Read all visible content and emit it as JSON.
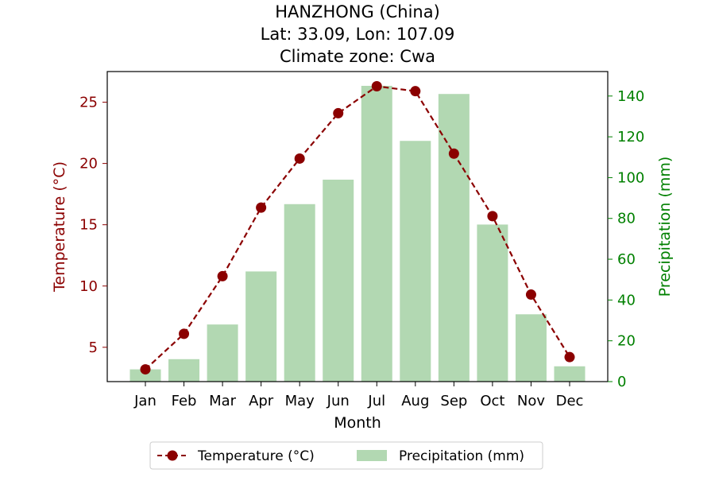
{
  "chart_data": {
    "type": "bar+line",
    "title_lines": [
      "HANZHONG (China)",
      "Lat: 33.09, Lon: 107.09",
      "Climate zone: Cwa"
    ],
    "xlabel": "Month",
    "categories": [
      "Jan",
      "Feb",
      "Mar",
      "Apr",
      "May",
      "Jun",
      "Jul",
      "Aug",
      "Sep",
      "Oct",
      "Nov",
      "Dec"
    ],
    "temperature": {
      "name": "Temperature (°C)",
      "axis_label": "Temperature (°C)",
      "values": [
        3.2,
        6.1,
        10.8,
        16.4,
        20.4,
        24.1,
        26.3,
        25.9,
        20.8,
        15.7,
        9.3,
        4.2
      ],
      "ylim": [
        2.2,
        27.5
      ],
      "ticks": [
        5,
        10,
        15,
        20,
        25
      ],
      "color": "#8b0000"
    },
    "precipitation": {
      "name": "Precipitation (mm)",
      "axis_label": "Precipitation (mm)",
      "values": [
        6,
        11,
        28,
        54,
        87,
        99,
        145,
        118,
        141,
        77,
        33,
        7.5
      ],
      "ylim": [
        0,
        152
      ],
      "ticks": [
        0,
        20,
        40,
        60,
        80,
        100,
        120,
        140
      ],
      "bar_color": "#b2d8b2",
      "axis_color": "#008000"
    },
    "legend": {
      "placement": "bottom-center",
      "entries": [
        "Temperature (°C)",
        "Precipitation (mm)"
      ]
    }
  }
}
